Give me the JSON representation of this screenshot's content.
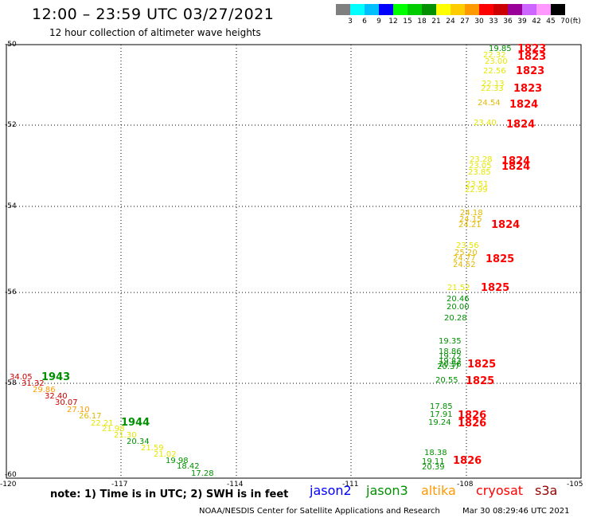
{
  "header": {
    "title": "12:00 – 23:59 UTC 03/27/2021",
    "subtitle": "12 hour collection of altimeter wave heights"
  },
  "colorbar": {
    "labels": [
      "3",
      "6",
      "9",
      "12",
      "15",
      "18",
      "21",
      "24",
      "27",
      "30",
      "33",
      "36",
      "39",
      "42",
      "45",
      "70"
    ],
    "unit": "(ft)",
    "colors": [
      "#7f7f7f",
      "#00ffff",
      "#00bfff",
      "#0000ff",
      "#00ff00",
      "#00cc00",
      "#009000",
      "#ffff00",
      "#ffcc00",
      "#ff9900",
      "#ff0000",
      "#cc0000",
      "#990099",
      "#cc66ff",
      "#ff99ff",
      "#000000"
    ]
  },
  "axes": {
    "lat_labels": [
      "-50",
      "-52",
      "-54",
      "-56",
      "-58",
      "-60"
    ],
    "lon_labels": [
      "-120",
      "-117",
      "-114",
      "-111",
      "-108",
      "-105"
    ]
  },
  "points": [
    {
      "t": "19.85",
      "c": "#009000"
    },
    {
      "t": "22.32",
      "c": "#e6e600"
    },
    {
      "t": "23.00",
      "c": "#e6e600"
    },
    {
      "t": "22.56",
      "c": "#e6e600"
    },
    {
      "t": "22.13",
      "c": "#e6e600"
    },
    {
      "t": "22.33",
      "c": "#e6e600"
    },
    {
      "t": "24.54",
      "c": "#e6b800"
    },
    {
      "t": "23.40",
      "c": "#e6e600"
    },
    {
      "t": "23.28",
      "c": "#e6e600"
    },
    {
      "t": "23.05",
      "c": "#e6e600"
    },
    {
      "t": "23.85",
      "c": "#e6e600"
    },
    {
      "t": "23.51",
      "c": "#e6e600"
    },
    {
      "t": "22.99",
      "c": "#e6e600"
    },
    {
      "t": "24.18",
      "c": "#e6b800"
    },
    {
      "t": "24.15",
      "c": "#e6b800"
    },
    {
      "t": "24.21",
      "c": "#e6b800"
    },
    {
      "t": "23.56",
      "c": "#e6e600"
    },
    {
      "t": "25.20",
      "c": "#e6b800"
    },
    {
      "t": "24.77",
      "c": "#e6b800"
    },
    {
      "t": "24.52",
      "c": "#e6b800"
    },
    {
      "t": "21.52",
      "c": "#e6e600"
    },
    {
      "t": "20.46",
      "c": "#009000"
    },
    {
      "t": "20.00",
      "c": "#009000"
    },
    {
      "t": "20.28",
      "c": "#009000"
    },
    {
      "t": "19.35",
      "c": "#009000"
    },
    {
      "t": "18.86",
      "c": "#009000"
    },
    {
      "t": "19.72",
      "c": "#009000"
    },
    {
      "t": "19.83",
      "c": "#009000"
    },
    {
      "t": "20.56",
      "c": "#009000"
    },
    {
      "t": "20.37",
      "c": "#009000"
    },
    {
      "t": "20.55",
      "c": "#009000"
    },
    {
      "t": "17.85",
      "c": "#009000"
    },
    {
      "t": "17.91",
      "c": "#009000"
    },
    {
      "t": "19.24",
      "c": "#009000"
    },
    {
      "t": "18.38",
      "c": "#009000"
    },
    {
      "t": "19.11",
      "c": "#009000"
    },
    {
      "t": "20.39",
      "c": "#009000"
    },
    {
      "t": "34.05",
      "c": "#cc0000"
    },
    {
      "t": "31.32",
      "c": "#cc0000"
    },
    {
      "t": "29.86",
      "c": "#ff9900"
    },
    {
      "t": "32.40",
      "c": "#cc0000"
    },
    {
      "t": "30.07",
      "c": "#cc0000"
    },
    {
      "t": "27.10",
      "c": "#ff9900"
    },
    {
      "t": "26.17",
      "c": "#e6b800"
    },
    {
      "t": "22.21",
      "c": "#e6e600"
    },
    {
      "t": "21.98",
      "c": "#e6e600"
    },
    {
      "t": "21.30",
      "c": "#e6e600"
    },
    {
      "t": "20.34",
      "c": "#009000"
    },
    {
      "t": "21.59",
      "c": "#e6e600"
    },
    {
      "t": "21.02",
      "c": "#e6e600"
    },
    {
      "t": "19.98",
      "c": "#009000"
    },
    {
      "t": "18.42",
      "c": "#009000"
    },
    {
      "t": "17.28",
      "c": "#009000"
    }
  ],
  "passes": [
    {
      "t": "1823",
      "c": "#ff0000"
    },
    {
      "t": "1823",
      "c": "#ff0000"
    },
    {
      "t": "1823",
      "c": "#ff0000"
    },
    {
      "t": "1823",
      "c": "#ff0000"
    },
    {
      "t": "1824",
      "c": "#ff0000"
    },
    {
      "t": "1824",
      "c": "#ff0000"
    },
    {
      "t": "1824",
      "c": "#ff0000"
    },
    {
      "t": "1824",
      "c": "#ff0000"
    },
    {
      "t": "1824",
      "c": "#ff0000"
    },
    {
      "t": "1825",
      "c": "#ff0000"
    },
    {
      "t": "1825",
      "c": "#ff0000"
    },
    {
      "t": "1825",
      "c": "#ff0000"
    },
    {
      "t": "1825",
      "c": "#ff0000"
    },
    {
      "t": "1826",
      "c": "#ff0000"
    },
    {
      "t": "1826",
      "c": "#ff0000"
    },
    {
      "t": "1826",
      "c": "#ff0000"
    },
    {
      "t": "1943",
      "c": "#009000"
    },
    {
      "t": "1944",
      "c": "#009000"
    }
  ],
  "note": "note: 1) Time is in UTC; 2) SWH is in feet",
  "legend": [
    {
      "name": "jason2",
      "color": "#0000ff"
    },
    {
      "name": "jason3",
      "color": "#009000"
    },
    {
      "name": "altika",
      "color": "#ff9900"
    },
    {
      "name": "cryosat",
      "color": "#ff0000"
    },
    {
      "name": "s3a",
      "color": "#990000"
    }
  ],
  "footer": "NOAA/NESDIS Center for Satellite Applications and Research",
  "timestamp": "Mar 30 08:29:46 UTC 2021"
}
